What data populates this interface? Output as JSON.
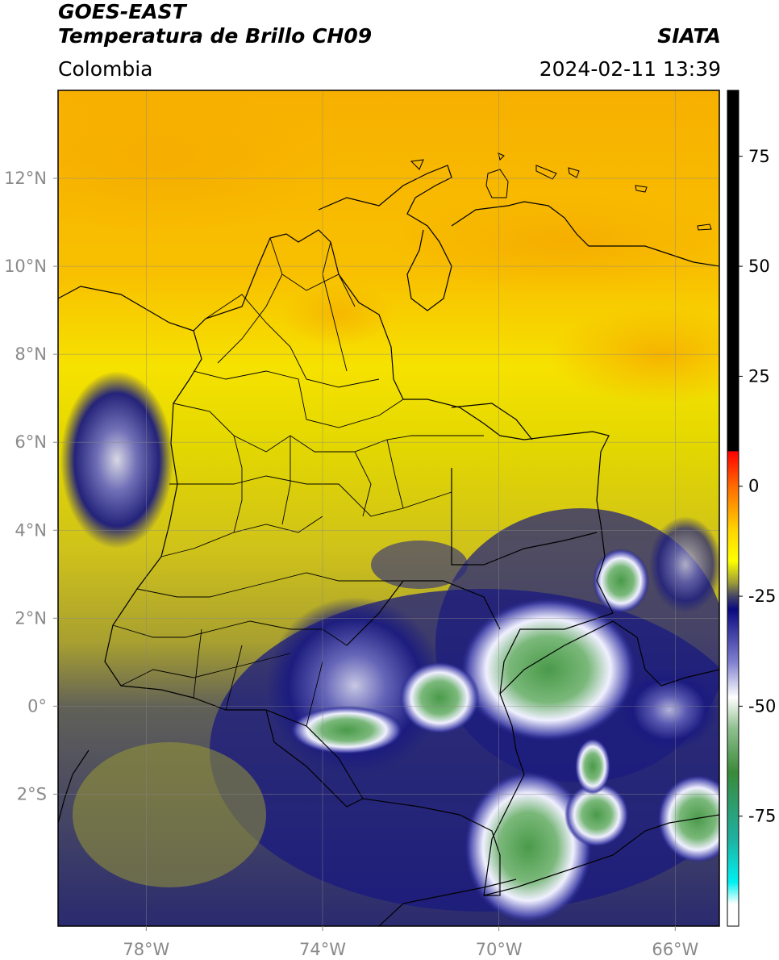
{
  "header": {
    "satellite": "GOES-EAST",
    "product": "Temperatura de Brillo CH09",
    "organization": "SIATA",
    "region": "Colombia",
    "timestamp": "2024-02-11 13:39"
  },
  "map": {
    "lon_range": [
      -80.0,
      -65.0
    ],
    "lat_range": [
      -5.0,
      14.0
    ],
    "lat_ticks": [
      {
        "value": 12,
        "label": "12°N"
      },
      {
        "value": 10,
        "label": "10°N"
      },
      {
        "value": 8,
        "label": "8°N"
      },
      {
        "value": 6,
        "label": "6°N"
      },
      {
        "value": 4,
        "label": "4°N"
      },
      {
        "value": 2,
        "label": "2°N"
      },
      {
        "value": 0,
        "label": "0°"
      },
      {
        "value": -2,
        "label": "2°S"
      }
    ],
    "lon_ticks": [
      {
        "value": -78,
        "label": "78°W"
      },
      {
        "value": -74,
        "label": "74°W"
      },
      {
        "value": -70,
        "label": "70°W"
      },
      {
        "value": -66,
        "label": "66°W"
      }
    ],
    "colors": {
      "warm_orange": "#f7b400",
      "yellow": "#f2e000",
      "olive": "#b8b02a",
      "navy": "#1a1a7a",
      "white_cloud": "#e8e8f8",
      "green_core": "#4a9a4a"
    }
  },
  "colorbar": {
    "range": [
      -100,
      90
    ],
    "ticks": [
      {
        "value": 75,
        "label": "75"
      },
      {
        "value": 50,
        "label": "50"
      },
      {
        "value": 25,
        "label": "25"
      },
      {
        "value": 0,
        "label": "0"
      },
      {
        "value": -25,
        "label": "-25"
      },
      {
        "value": -50,
        "label": "-50"
      },
      {
        "value": -75,
        "label": "-75"
      }
    ],
    "stops": [
      {
        "value": 90,
        "color": "#000000"
      },
      {
        "value": 8,
        "color": "#000000"
      },
      {
        "value": 7.9,
        "color": "#ff0000"
      },
      {
        "value": 0,
        "color": "#ff6a00"
      },
      {
        "value": -10,
        "color": "#ffd500"
      },
      {
        "value": -17,
        "color": "#ffff00"
      },
      {
        "value": -22,
        "color": "#9a9a3a"
      },
      {
        "value": -25,
        "color": "#444466"
      },
      {
        "value": -28,
        "color": "#0a0a80"
      },
      {
        "value": -40,
        "color": "#8080d0"
      },
      {
        "value": -48,
        "color": "#ffffff"
      },
      {
        "value": -55,
        "color": "#90c090"
      },
      {
        "value": -65,
        "color": "#3a8a3a"
      },
      {
        "value": -80,
        "color": "#20b0a0"
      },
      {
        "value": -90,
        "color": "#00f0f0"
      },
      {
        "value": -95,
        "color": "#ffffff"
      },
      {
        "value": -100,
        "color": "#ffffff"
      }
    ]
  }
}
